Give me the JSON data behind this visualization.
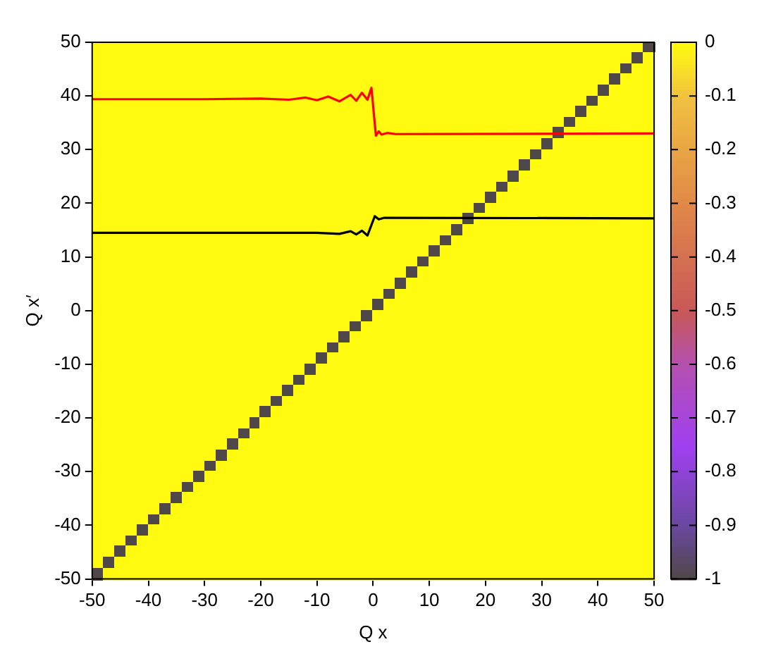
{
  "chart_data": {
    "type": "heatmap",
    "xlabel": "Q x",
    "ylabel": "Q x′",
    "x": [
      -49,
      -47,
      -45,
      -43,
      -41,
      -39,
      -37,
      -35,
      -33,
      -31,
      -29,
      -27,
      -25,
      -23,
      -21,
      -19,
      -17,
      -15,
      -13,
      -11,
      -9,
      -7,
      -5,
      -3,
      -1,
      1,
      3,
      5,
      7,
      9,
      11,
      13,
      15,
      17,
      19,
      21,
      23,
      25,
      27,
      29,
      31,
      33,
      35,
      37,
      39,
      41,
      43,
      45,
      47,
      49
    ],
    "xlim": [
      -50,
      50
    ],
    "xticks": [
      -50,
      -40,
      -30,
      -20,
      -10,
      0,
      10,
      20,
      30,
      40,
      50
    ],
    "ylim": [
      -50,
      50
    ],
    "yticks": [
      -50,
      -40,
      -30,
      -20,
      -10,
      0,
      10,
      20,
      30,
      40,
      50
    ],
    "clim": [
      -1,
      0
    ],
    "cticks": [
      -1,
      -0.9,
      -0.8,
      -0.7,
      -0.6,
      -0.5,
      -0.4,
      -0.3,
      -0.2,
      -0.1,
      0
    ],
    "legend": false,
    "marker": "none",
    "cells": [
      [
        0,
        0,
        0,
        0,
        0,
        0,
        0,
        0,
        0,
        0,
        0,
        0,
        0,
        0,
        0,
        0,
        0,
        0,
        0,
        0,
        0,
        0,
        0,
        0,
        0,
        0,
        0,
        0,
        0,
        0,
        0,
        0,
        0,
        0,
        0,
        0,
        0,
        0,
        0,
        0,
        0,
        0,
        0,
        0,
        0,
        0,
        0,
        0,
        0,
        -1
      ],
      [
        0,
        0,
        0,
        0,
        0,
        0,
        0,
        0,
        0,
        0,
        0,
        0,
        0,
        0,
        0,
        0,
        0,
        0,
        0,
        0,
        0,
        0,
        0,
        0,
        0,
        0,
        0,
        0,
        0,
        0,
        0,
        0,
        0,
        0,
        0,
        0,
        0,
        0,
        0,
        0,
        0,
        0,
        0,
        0,
        0,
        0,
        0,
        0,
        -1,
        0
      ],
      [
        0,
        0,
        0,
        0,
        0,
        0,
        0,
        0,
        0,
        0,
        0,
        0,
        0,
        0,
        0,
        0,
        0,
        0,
        0,
        0,
        0,
        0,
        0,
        0,
        0,
        0,
        0,
        0,
        0,
        0,
        0,
        0,
        0,
        0,
        0,
        0,
        0,
        0,
        0,
        0,
        0,
        0,
        0,
        0,
        0,
        0,
        0,
        -1,
        0,
        0
      ],
      [
        0,
        0,
        0,
        0,
        0,
        0,
        0,
        0,
        0,
        0,
        0,
        0,
        0,
        0,
        0,
        0,
        0,
        0,
        0,
        0,
        0,
        0,
        0,
        0,
        0,
        0,
        0,
        0,
        0,
        0,
        0,
        0,
        0,
        0,
        0,
        0,
        0,
        0,
        0,
        0,
        0,
        0,
        0,
        0,
        0,
        0,
        -1,
        0,
        0,
        0
      ],
      [
        0,
        0,
        0,
        0,
        0,
        0,
        0,
        0,
        0,
        0,
        0,
        0,
        0,
        0,
        0,
        0,
        0,
        0,
        0,
        0,
        0,
        0,
        0,
        0,
        0,
        0,
        0,
        0,
        0,
        0,
        0,
        0,
        0,
        0,
        0,
        0,
        0,
        0,
        0,
        0,
        0,
        0,
        0,
        0,
        0,
        -1,
        0,
        0,
        0,
        0
      ],
      [
        0,
        0,
        0,
        0,
        0,
        0,
        0,
        0,
        0,
        0,
        0,
        0,
        0,
        0,
        0,
        0,
        0,
        0,
        0,
        0,
        0,
        0,
        0,
        0,
        0,
        0,
        0,
        0,
        0,
        0,
        0,
        0,
        0,
        0,
        0,
        0,
        0,
        0,
        0,
        0,
        0,
        0,
        0,
        0,
        -1,
        0,
        0,
        0,
        0,
        0
      ],
      [
        0,
        0,
        0,
        0,
        0,
        0,
        0,
        0,
        0,
        0,
        0,
        0,
        0,
        0,
        0,
        0,
        0,
        0,
        0,
        0,
        0,
        0,
        0,
        0,
        0,
        0,
        0,
        0,
        0,
        0,
        0,
        0,
        0,
        0,
        0,
        0,
        0,
        0,
        0,
        0,
        0,
        0,
        0,
        -1,
        0,
        0,
        0,
        0,
        0,
        0
      ],
      [
        0,
        0,
        0,
        0,
        0,
        0,
        0,
        0,
        0,
        0,
        0,
        0,
        0,
        0,
        0,
        0,
        0,
        0,
        0,
        0,
        0,
        0,
        0,
        0,
        0,
        0,
        0,
        0,
        0,
        0,
        0,
        0,
        0,
        0,
        0,
        0,
        0,
        0,
        0,
        0,
        0,
        0,
        -1,
        0,
        0,
        0,
        0,
        0,
        0,
        0
      ],
      [
        0,
        0,
        0,
        0,
        0,
        0,
        0,
        0,
        0,
        0,
        0,
        0,
        0,
        0,
        0,
        0,
        0,
        0,
        0,
        0,
        0,
        0,
        0,
        0,
        0,
        0,
        0,
        0,
        0,
        0,
        0,
        0,
        0,
        0,
        0,
        0,
        0,
        0,
        0,
        0,
        0,
        -1,
        0,
        0,
        0,
        0,
        0,
        0,
        0,
        0
      ],
      [
        0,
        0,
        0,
        0,
        0,
        0,
        0,
        0,
        0,
        0,
        0,
        0,
        0,
        0,
        0,
        0,
        0,
        0,
        0,
        0,
        0,
        0,
        0,
        0,
        0,
        0,
        0,
        0,
        0,
        0,
        0,
        0,
        0,
        0,
        0,
        0,
        0,
        0,
        0,
        0,
        -1,
        0,
        0,
        0,
        0,
        0,
        0,
        0,
        0,
        0
      ],
      [
        0,
        0,
        0,
        0,
        0,
        0,
        0,
        0,
        0,
        0,
        0,
        0,
        0,
        0,
        0,
        0,
        0,
        0,
        0,
        0,
        0,
        0,
        0,
        0,
        0,
        0,
        0,
        0,
        0,
        0,
        0,
        0,
        0,
        0,
        0,
        0,
        0,
        0,
        0,
        -1,
        0,
        0,
        0,
        0,
        0,
        0,
        0,
        0,
        0,
        0
      ],
      [
        0,
        0,
        0,
        0,
        0,
        0,
        0,
        0,
        0,
        0,
        0,
        0,
        0,
        0,
        0,
        0,
        0,
        0,
        0,
        0,
        0,
        0,
        0,
        0,
        0,
        0,
        0,
        0,
        0,
        0,
        0,
        0,
        0,
        0,
        0,
        0,
        0,
        0,
        -1,
        0,
        0,
        0,
        0,
        0,
        0,
        0,
        0,
        0,
        0,
        0
      ],
      [
        0,
        0,
        0,
        0,
        0,
        0,
        0,
        0,
        0,
        0,
        0,
        0,
        0,
        0,
        0,
        0,
        0,
        0,
        0,
        0,
        0,
        0,
        0,
        0,
        0,
        0,
        0,
        0,
        0,
        0,
        0,
        0,
        0,
        0,
        0,
        0,
        0,
        -1,
        0,
        0,
        0,
        0,
        0,
        0,
        0,
        0,
        0,
        0,
        0,
        0
      ],
      [
        0,
        0,
        0,
        0,
        0,
        0,
        0,
        0,
        0,
        0,
        0,
        0,
        0,
        0,
        0,
        0,
        0,
        0,
        0,
        0,
        0,
        0,
        0,
        0,
        0,
        0,
        0,
        0,
        0,
        0,
        0,
        0,
        0,
        0,
        0,
        0,
        -1,
        0,
        0,
        0,
        0,
        0,
        0,
        0,
        0,
        0,
        0,
        0,
        0,
        0
      ],
      [
        0,
        0,
        0,
        0,
        0,
        0,
        0,
        0,
        0,
        0,
        0,
        0,
        0,
        0,
        0,
        0,
        0,
        0,
        0,
        0,
        0,
        0,
        0,
        0,
        0,
        0,
        0,
        0,
        0,
        0,
        0,
        0,
        0,
        0,
        0,
        -1,
        0,
        0,
        0,
        0,
        0,
        0,
        0,
        0,
        0,
        0,
        0,
        0,
        0,
        0
      ],
      [
        0,
        0,
        0,
        0,
        0,
        0,
        0,
        0,
        0,
        0,
        0,
        0,
        0,
        0,
        0,
        0,
        0,
        0,
        0,
        0,
        0,
        0,
        0,
        0,
        0,
        0,
        0,
        0,
        0,
        0,
        0,
        0,
        0,
        0,
        -1,
        0,
        0,
        0,
        0,
        0,
        0,
        0,
        0,
        0,
        0,
        0,
        0,
        0,
        0,
        0
      ],
      [
        0,
        0,
        0,
        0,
        0,
        0,
        0,
        0,
        0,
        0,
        0,
        0,
        0,
        0,
        0,
        0,
        0,
        0,
        0,
        0,
        0,
        0,
        0,
        0,
        0,
        0,
        0,
        0,
        0,
        0,
        0,
        0,
        0,
        -1,
        0,
        0,
        0,
        0,
        0,
        0,
        0,
        0,
        0,
        0,
        0,
        0,
        0,
        0,
        0,
        0
      ],
      [
        0,
        0,
        0,
        0,
        0,
        0,
        0,
        0,
        0,
        0,
        0,
        0,
        0,
        0,
        0,
        0,
        0,
        0,
        0,
        0,
        0,
        0,
        0,
        0,
        0,
        0,
        0,
        0,
        0,
        0,
        0,
        0,
        -1,
        0,
        0,
        0,
        0,
        0,
        0,
        0,
        0,
        0,
        0,
        0,
        0,
        0,
        0,
        0,
        0,
        0
      ],
      [
        0,
        0,
        0,
        0,
        0,
        0,
        0,
        0,
        0,
        0,
        0,
        0,
        0,
        0,
        0,
        0,
        0,
        0,
        0,
        0,
        0,
        0,
        0,
        0,
        0,
        0,
        0,
        0,
        0,
        0,
        0,
        -1,
        0,
        0,
        0,
        0,
        0,
        0,
        0,
        0,
        0,
        0,
        0,
        0,
        0,
        0,
        0,
        0,
        0,
        0
      ],
      [
        0,
        0,
        0,
        0,
        0,
        0,
        0,
        0,
        0,
        0,
        0,
        0,
        0,
        0,
        0,
        0,
        0,
        0,
        0,
        0,
        0,
        0,
        0,
        0,
        0,
        0,
        0,
        0,
        0,
        0,
        -1,
        0,
        0,
        0,
        0,
        0,
        0,
        0,
        0,
        0,
        0,
        0,
        0,
        0,
        0,
        0,
        0,
        0,
        0,
        0
      ],
      [
        0,
        0,
        0,
        0,
        0,
        0,
        0,
        0,
        0,
        0,
        0,
        0,
        0,
        0,
        0,
        0,
        0,
        0,
        0,
        0,
        0,
        0,
        0,
        0,
        0,
        0,
        0,
        0,
        0,
        -1,
        0,
        0,
        0,
        0,
        0,
        0,
        0,
        0,
        0,
        0,
        0,
        0,
        0,
        0,
        0,
        0,
        0,
        0,
        0,
        0
      ],
      [
        0,
        0,
        0,
        0,
        0,
        0,
        0,
        0,
        0,
        0,
        0,
        0,
        0,
        0,
        0,
        0,
        0,
        0,
        0,
        0,
        0,
        0,
        0,
        0,
        0,
        0,
        0,
        0,
        -1,
        0,
        0,
        0,
        0,
        0,
        0,
        0,
        0,
        0,
        0,
        0,
        0,
        0,
        0,
        0,
        0,
        0,
        0,
        0,
        0,
        0
      ],
      [
        0,
        0,
        0,
        0,
        0,
        0,
        0,
        0,
        0,
        0,
        0,
        0,
        0,
        0,
        0,
        0,
        0,
        0,
        0,
        0,
        0,
        0,
        0,
        0,
        0,
        0,
        0,
        -1,
        0,
        0,
        0,
        0,
        0,
        0,
        0,
        0,
        0,
        0,
        0,
        0,
        0,
        0,
        0,
        0,
        0,
        0,
        0,
        0,
        0,
        0
      ],
      [
        0,
        0,
        0,
        0,
        0,
        0,
        0,
        0,
        0,
        0,
        0,
        0,
        0,
        0,
        0,
        0,
        0,
        0,
        0,
        0,
        0,
        0,
        0,
        0,
        0,
        0,
        -1,
        0,
        0,
        0,
        0,
        0,
        0,
        0,
        0,
        0,
        0,
        0,
        0,
        0,
        0,
        0,
        0,
        0,
        0,
        0,
        0,
        0,
        0,
        0
      ],
      [
        0,
        0,
        0,
        0,
        0,
        0,
        0,
        0,
        0,
        0,
        0,
        0,
        0,
        0,
        0,
        0,
        0,
        0,
        0,
        0,
        0,
        0,
        0,
        0,
        0,
        -1,
        0,
        0,
        0,
        0,
        0,
        0,
        0,
        0,
        0,
        0,
        0,
        0,
        0,
        0,
        0,
        0,
        0,
        0,
        0,
        0,
        0,
        0,
        0,
        0
      ],
      [
        0,
        0,
        0,
        0,
        0,
        0,
        0,
        0,
        0,
        0,
        0,
        0,
        0,
        0,
        0,
        0,
        0,
        0,
        0,
        0,
        0,
        0,
        0,
        0,
        -1,
        0,
        0,
        0,
        0,
        0,
        0,
        0,
        0,
        0,
        0,
        0,
        0,
        0,
        0,
        0,
        0,
        0,
        0,
        0,
        0,
        0,
        0,
        0,
        0,
        0
      ],
      [
        0,
        0,
        0,
        0,
        0,
        0,
        0,
        0,
        0,
        0,
        0,
        0,
        0,
        0,
        0,
        0,
        0,
        0,
        0,
        0,
        0,
        0,
        0,
        -1,
        0,
        0,
        0,
        0,
        0,
        0,
        0,
        0,
        0,
        0,
        0,
        0,
        0,
        0,
        0,
        0,
        0,
        0,
        0,
        0,
        0,
        0,
        0,
        0,
        0,
        0
      ],
      [
        0,
        0,
        0,
        0,
        0,
        0,
        0,
        0,
        0,
        0,
        0,
        0,
        0,
        0,
        0,
        0,
        0,
        0,
        0,
        0,
        0,
        0,
        -1,
        0,
        0,
        0,
        0,
        0,
        0,
        0,
        0,
        0,
        0,
        0,
        0,
        0,
        0,
        0,
        0,
        0,
        0,
        0,
        0,
        0,
        0,
        0,
        0,
        0,
        0,
        0
      ],
      [
        0,
        0,
        0,
        0,
        0,
        0,
        0,
        0,
        0,
        0,
        0,
        0,
        0,
        0,
        0,
        0,
        0,
        0,
        0,
        0,
        0,
        -1,
        0,
        0,
        0,
        0,
        0,
        0,
        0,
        0,
        0,
        0,
        0,
        0,
        0,
        0,
        0,
        0,
        0,
        0,
        0,
        0,
        0,
        0,
        0,
        0,
        0,
        0,
        0,
        0
      ],
      [
        0,
        0,
        0,
        0,
        0,
        0,
        0,
        0,
        0,
        0,
        0,
        0,
        0,
        0,
        0,
        0,
        0,
        0,
        0,
        0,
        -1,
        0,
        0,
        0,
        0,
        0,
        0,
        0,
        0,
        0,
        0,
        0,
        0,
        0,
        0,
        0,
        0,
        0,
        0,
        0,
        0,
        0,
        0,
        0,
        0,
        0,
        0,
        0,
        0,
        0
      ],
      [
        0,
        0,
        0,
        0,
        0,
        0,
        0,
        0,
        0,
        0,
        0,
        0,
        0,
        0,
        0,
        0,
        0,
        0,
        0,
        -1,
        0,
        0,
        0,
        0,
        0,
        0,
        0,
        0,
        0,
        0,
        0,
        0,
        0,
        0,
        0,
        0,
        0,
        0,
        0,
        0,
        0,
        0,
        0,
        0,
        0,
        0,
        0,
        0,
        0,
        0
      ],
      [
        0,
        0,
        0,
        0,
        0,
        0,
        0,
        0,
        0,
        0,
        0,
        0,
        0,
        0,
        0,
        0,
        0,
        0,
        -1,
        0,
        0,
        0,
        0,
        0,
        0,
        0,
        0,
        0,
        0,
        0,
        0,
        0,
        0,
        0,
        0,
        0,
        0,
        0,
        0,
        0,
        0,
        0,
        0,
        0,
        0,
        0,
        0,
        0,
        0,
        0
      ],
      [
        0,
        0,
        0,
        0,
        0,
        0,
        0,
        0,
        0,
        0,
        0,
        0,
        0,
        0,
        0,
        0,
        0,
        -1,
        0,
        0,
        0,
        0,
        0,
        0,
        0,
        0,
        0,
        0,
        0,
        0,
        0,
        0,
        0,
        0,
        0,
        0,
        0,
        0,
        0,
        0,
        0,
        0,
        0,
        0,
        0,
        0,
        0,
        0,
        0,
        0
      ],
      [
        0,
        0,
        0,
        0,
        0,
        0,
        0,
        0,
        0,
        0,
        0,
        0,
        0,
        0,
        0,
        0,
        -1,
        0,
        0,
        0,
        0,
        0,
        0,
        0,
        0,
        0,
        0,
        0,
        0,
        0,
        0,
        0,
        0,
        0,
        0,
        0,
        0,
        0,
        0,
        0,
        0,
        0,
        0,
        0,
        0,
        0,
        0,
        0,
        0,
        0
      ],
      [
        0,
        0,
        0,
        0,
        0,
        0,
        0,
        0,
        0,
        0,
        0,
        0,
        0,
        0,
        0,
        -1,
        0,
        0,
        0,
        0,
        0,
        0,
        0,
        0,
        0,
        0,
        0,
        0,
        0,
        0,
        0,
        0,
        0,
        0,
        0,
        0,
        0,
        0,
        0,
        0,
        0,
        0,
        0,
        0,
        0,
        0,
        0,
        0,
        0,
        0
      ],
      [
        0,
        0,
        0,
        0,
        0,
        0,
        0,
        0,
        0,
        0,
        0,
        0,
        0,
        0,
        -1,
        0,
        0,
        0,
        0,
        0,
        0,
        0,
        0,
        0,
        0,
        0,
        0,
        0,
        0,
        0,
        0,
        0,
        0,
        0,
        0,
        0,
        0,
        0,
        0,
        0,
        0,
        0,
        0,
        0,
        0,
        0,
        0,
        0,
        0,
        0
      ],
      [
        0,
        0,
        0,
        0,
        0,
        0,
        0,
        0,
        0,
        0,
        0,
        0,
        0,
        -1,
        0,
        0,
        0,
        0,
        0,
        0,
        0,
        0,
        0,
        0,
        0,
        0,
        0,
        0,
        0,
        0,
        0,
        0,
        0,
        0,
        0,
        0,
        0,
        0,
        0,
        0,
        0,
        0,
        0,
        0,
        0,
        0,
        0,
        0,
        0,
        0
      ],
      [
        0,
        0,
        0,
        0,
        0,
        0,
        0,
        0,
        0,
        0,
        0,
        0,
        -1,
        0,
        0,
        0,
        0,
        0,
        0,
        0,
        0,
        0,
        0,
        0,
        0,
        0,
        0,
        0,
        0,
        0,
        0,
        0,
        0,
        0,
        0,
        0,
        0,
        0,
        0,
        0,
        0,
        0,
        0,
        0,
        0,
        0,
        0,
        0,
        0,
        0
      ],
      [
        0,
        0,
        0,
        0,
        0,
        0,
        0,
        0,
        0,
        0,
        0,
        -1,
        0,
        0,
        0,
        0,
        0,
        0,
        0,
        0,
        0,
        0,
        0,
        0,
        0,
        0,
        0,
        0,
        0,
        0,
        0,
        0,
        0,
        0,
        0,
        0,
        0,
        0,
        0,
        0,
        0,
        0,
        0,
        0,
        0,
        0,
        0,
        0,
        0,
        0
      ],
      [
        0,
        0,
        0,
        0,
        0,
        0,
        0,
        0,
        0,
        0,
        -1,
        0,
        0,
        0,
        0,
        0,
        0,
        0,
        0,
        0,
        0,
        0,
        0,
        0,
        0,
        0,
        0,
        0,
        0,
        0,
        0,
        0,
        0,
        0,
        0,
        0,
        0,
        0,
        0,
        0,
        0,
        0,
        0,
        0,
        0,
        0,
        0,
        0,
        0,
        0
      ],
      [
        0,
        0,
        0,
        0,
        0,
        0,
        0,
        0,
        0,
        -1,
        0,
        0,
        0,
        0,
        0,
        0,
        0,
        0,
        0,
        0,
        0,
        0,
        0,
        0,
        0,
        0,
        0,
        0,
        0,
        0,
        0,
        0,
        0,
        0,
        0,
        0,
        0,
        0,
        0,
        0,
        0,
        0,
        0,
        0,
        0,
        0,
        0,
        0,
        0,
        0
      ],
      [
        0,
        0,
        0,
        0,
        0,
        0,
        0,
        0,
        -1,
        0,
        0,
        0,
        0,
        0,
        0,
        0,
        0,
        0,
        0,
        0,
        0,
        0,
        0,
        0,
        0,
        0,
        0,
        0,
        0,
        0,
        0,
        0,
        0,
        0,
        0,
        0,
        0,
        0,
        0,
        0,
        0,
        0,
        0,
        0,
        0,
        0,
        0,
        0,
        0,
        0
      ],
      [
        0,
        0,
        0,
        0,
        0,
        0,
        0,
        -1,
        0,
        0,
        0,
        0,
        0,
        0,
        0,
        0,
        0,
        0,
        0,
        0,
        0,
        0,
        0,
        0,
        0,
        0,
        0,
        0,
        0,
        0,
        0,
        0,
        0,
        0,
        0,
        0,
        0,
        0,
        0,
        0,
        0,
        0,
        0,
        0,
        0,
        0,
        0,
        0,
        0,
        0
      ],
      [
        0,
        0,
        0,
        0,
        0,
        0,
        -1,
        0,
        0,
        0,
        0,
        0,
        0,
        0,
        0,
        0,
        0,
        0,
        0,
        0,
        0,
        0,
        0,
        0,
        0,
        0,
        0,
        0,
        0,
        0,
        0,
        0,
        0,
        0,
        0,
        0,
        0,
        0,
        0,
        0,
        0,
        0,
        0,
        0,
        0,
        0,
        0,
        0,
        0,
        0
      ],
      [
        0,
        0,
        0,
        0,
        0,
        -1,
        0,
        0,
        0,
        0,
        0,
        0,
        0,
        0,
        0,
        0,
        0,
        0,
        0,
        0,
        0,
        0,
        0,
        0,
        0,
        0,
        0,
        0,
        0,
        0,
        0,
        0,
        0,
        0,
        0,
        0,
        0,
        0,
        0,
        0,
        0,
        0,
        0,
        0,
        0,
        0,
        0,
        0,
        0,
        0
      ],
      [
        0,
        0,
        0,
        0,
        -1,
        0,
        0,
        0,
        0,
        0,
        0,
        0,
        0,
        0,
        0,
        0,
        0,
        0,
        0,
        0,
        0,
        0,
        0,
        0,
        0,
        0,
        0,
        0,
        0,
        0,
        0,
        0,
        0,
        0,
        0,
        0,
        0,
        0,
        0,
        0,
        0,
        0,
        0,
        0,
        0,
        0,
        0,
        0,
        0,
        0
      ],
      [
        0,
        0,
        0,
        -1,
        0,
        0,
        0,
        0,
        0,
        0,
        0,
        0,
        0,
        0,
        0,
        0,
        0,
        0,
        0,
        0,
        0,
        0,
        0,
        0,
        0,
        0,
        0,
        0,
        0,
        0,
        0,
        0,
        0,
        0,
        0,
        0,
        0,
        0,
        0,
        0,
        0,
        0,
        0,
        0,
        0,
        0,
        0,
        0,
        0,
        0
      ],
      [
        0,
        0,
        -1,
        0,
        0,
        0,
        0,
        0,
        0,
        0,
        0,
        0,
        0,
        0,
        0,
        0,
        0,
        0,
        0,
        0,
        0,
        0,
        0,
        0,
        0,
        0,
        0,
        0,
        0,
        0,
        0,
        0,
        0,
        0,
        0,
        0,
        0,
        0,
        0,
        0,
        0,
        0,
        0,
        0,
        0,
        0,
        0,
        0,
        0,
        0
      ],
      [
        0,
        -1,
        0,
        0,
        0,
        0,
        0,
        0,
        0,
        0,
        0,
        0,
        0,
        0,
        0,
        0,
        0,
        0,
        0,
        0,
        0,
        0,
        0,
        0,
        0,
        0,
        0,
        0,
        0,
        0,
        0,
        0,
        0,
        0,
        0,
        0,
        0,
        0,
        0,
        0,
        0,
        0,
        0,
        0,
        0,
        0,
        0,
        0,
        0,
        0
      ],
      [
        -1,
        0,
        0,
        0,
        0,
        0,
        0,
        0,
        0,
        0,
        0,
        0,
        0,
        0,
        0,
        0,
        0,
        0,
        0,
        0,
        0,
        0,
        0,
        0,
        0,
        0,
        0,
        0,
        0,
        0,
        0,
        0,
        0,
        0,
        0,
        0,
        0,
        0,
        0,
        0,
        0,
        0,
        0,
        0,
        0,
        0,
        0,
        0,
        0,
        0
      ]
    ],
    "series": [
      {
        "type": "line",
        "color": "#ff0000",
        "x": [
          -50,
          -30,
          -20,
          -15,
          -12,
          -10,
          -8,
          -6,
          -4,
          -3,
          -2,
          -1,
          -0.3,
          0.5,
          1,
          1.5,
          2.5,
          4,
          50
        ],
        "values": [
          39.4,
          39.4,
          39.5,
          39.3,
          39.7,
          39.2,
          39.9,
          39.0,
          40.2,
          39.1,
          40.6,
          39.3,
          41.5,
          32.6,
          33.4,
          32.8,
          33.1,
          32.9,
          33
        ]
      },
      {
        "type": "line",
        "color": "#000000",
        "x": [
          -50,
          -10,
          -6,
          -4,
          -3,
          -2,
          -1,
          0.3,
          1,
          2,
          50
        ],
        "values": [
          14.5,
          14.5,
          14.3,
          14.8,
          14.2,
          14.9,
          14.0,
          17.6,
          17.0,
          17.3,
          17.2
        ]
      }
    ]
  }
}
